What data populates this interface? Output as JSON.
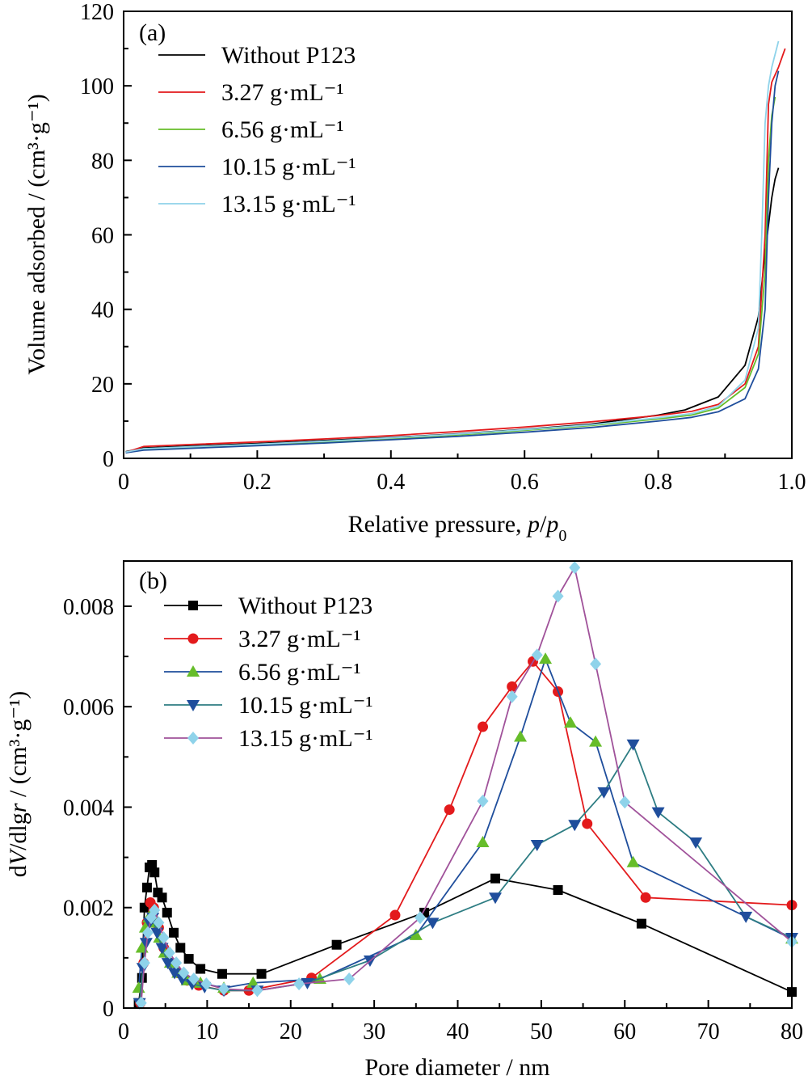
{
  "chart_data": [
    {
      "panel": "(a)",
      "type": "line",
      "xlabel_main": "Relative pressure, ",
      "xlabel_italic": "p",
      "xlabel_slash": "/",
      "xlabel_italic2": "p",
      "xlabel_sub": "0",
      "ylabel": "Volume adsorbed / (cm³·g⁻¹)",
      "xlim": [
        0,
        1.0
      ],
      "ylim": [
        0,
        120
      ],
      "xticks": [
        0,
        0.2,
        0.4,
        0.6,
        0.8,
        1.0
      ],
      "xtick_labels": [
        "0",
        "0.2",
        "0.4",
        "0.6",
        "0.8",
        "1.0"
      ],
      "yticks": [
        0,
        20,
        40,
        60,
        80,
        100,
        120
      ],
      "ytick_labels": [
        "0",
        "20",
        "40",
        "60",
        "80",
        "100",
        "120"
      ],
      "legend_position": "top-left",
      "series": [
        {
          "name": "Without P123",
          "color": "#000000",
          "x": [
            0.003,
            0.03,
            0.1,
            0.2,
            0.3,
            0.4,
            0.5,
            0.6,
            0.7,
            0.8,
            0.84,
            0.89,
            0.93,
            0.95,
            0.96,
            0.97,
            0.975,
            0.98
          ],
          "y": [
            1.8,
            2.8,
            3.3,
            4.0,
            4.8,
            5.6,
            6.6,
            7.8,
            9.2,
            11.6,
            13.0,
            16.5,
            25,
            38,
            55,
            70,
            75,
            78
          ]
        },
        {
          "name": "3.27 g·mL⁻¹",
          "color": "#e31a1c",
          "x": [
            0.003,
            0.03,
            0.1,
            0.2,
            0.3,
            0.4,
            0.5,
            0.6,
            0.7,
            0.8,
            0.85,
            0.89,
            0.93,
            0.95,
            0.96,
            0.965,
            0.97,
            0.98,
            0.99
          ],
          "y": [
            1.6,
            3.2,
            3.7,
            4.4,
            5.2,
            6.1,
            7.2,
            8.4,
            9.8,
            11.5,
            12.6,
            14.5,
            20,
            30,
            60,
            95,
            101,
            105,
            110
          ]
        },
        {
          "name": "6.56 g·mL⁻¹",
          "color": "#66bd2a",
          "x": [
            0.003,
            0.03,
            0.1,
            0.2,
            0.3,
            0.4,
            0.5,
            0.6,
            0.7,
            0.8,
            0.85,
            0.89,
            0.93,
            0.95,
            0.96,
            0.965,
            0.97,
            0.975
          ],
          "y": [
            1.6,
            2.4,
            2.9,
            3.6,
            4.4,
            5.3,
            6.3,
            7.5,
            8.8,
            10.6,
            11.6,
            13.5,
            19,
            28,
            50,
            80,
            92,
            97
          ]
        },
        {
          "name": "10.15 g·mL⁻¹",
          "color": "#1f4e9c",
          "x": [
            0.003,
            0.03,
            0.1,
            0.2,
            0.3,
            0.4,
            0.5,
            0.6,
            0.7,
            0.8,
            0.85,
            0.89,
            0.93,
            0.95,
            0.96,
            0.965,
            0.97,
            0.975,
            0.98
          ],
          "y": [
            1.5,
            2.2,
            2.7,
            3.4,
            4.1,
            5.0,
            5.9,
            7.0,
            8.3,
            10.0,
            11.0,
            12.5,
            16,
            24,
            40,
            70,
            90,
            100,
            104
          ]
        },
        {
          "name": "13.15 g·mL⁻¹",
          "color": "#8fd3ea",
          "x": [
            0.003,
            0.03,
            0.1,
            0.2,
            0.3,
            0.4,
            0.5,
            0.6,
            0.7,
            0.8,
            0.85,
            0.89,
            0.93,
            0.95,
            0.955,
            0.96,
            0.965,
            0.97,
            0.98
          ],
          "y": [
            1.7,
            2.6,
            3.1,
            3.8,
            4.6,
            5.5,
            6.5,
            7.7,
            9.0,
            10.9,
            12.0,
            14.0,
            21,
            35,
            60,
            90,
            100,
            105,
            112
          ]
        }
      ]
    },
    {
      "panel": "(b)",
      "type": "line",
      "xlabel": "Pore diameter / nm",
      "ylabel_pre": "d",
      "ylabel_italic": "V",
      "ylabel_mid": "/dlg",
      "ylabel_italic2": "r",
      "ylabel_post": " / (cm³·g⁻¹)",
      "xlim": [
        0,
        80
      ],
      "ylim": [
        0,
        0.0089
      ],
      "xticks": [
        0,
        10,
        20,
        30,
        40,
        50,
        60,
        70,
        80
      ],
      "xtick_labels": [
        "0",
        "10",
        "20",
        "30",
        "40",
        "50",
        "60",
        "70",
        "80"
      ],
      "yticks": [
        0,
        0.002,
        0.004,
        0.006,
        0.008
      ],
      "ytick_labels": [
        "0",
        "0.002",
        "0.004",
        "0.006",
        "0.008"
      ],
      "legend_position": "top-left",
      "series": [
        {
          "name": "Without P123",
          "color": "#000000",
          "line_color": "#000000",
          "marker": "square",
          "x": [
            1.8,
            2.2,
            2.5,
            2.8,
            3.1,
            3.4,
            3.7,
            4.1,
            4.6,
            5.2,
            6.0,
            6.8,
            7.8,
            9.2,
            11.8,
            16.5,
            25.5,
            36.0,
            44.5,
            52.0,
            62.0,
            80.0
          ],
          "y": [
            0.0001,
            0.0006,
            0.002,
            0.0024,
            0.0028,
            0.00285,
            0.0027,
            0.0023,
            0.0022,
            0.0019,
            0.0015,
            0.0012,
            0.00098,
            0.00078,
            0.00068,
            0.00068,
            0.00126,
            0.0019,
            0.00258,
            0.00235,
            0.00168,
            0.00032
          ]
        },
        {
          "name": "3.27 g·mL⁻¹",
          "color": "#e31a1c",
          "line_color": "#e31a1c",
          "marker": "circle",
          "x": [
            2.0,
            2.4,
            2.8,
            3.2,
            3.6,
            4.2,
            4.8,
            5.6,
            6.5,
            7.6,
            9.0,
            12.0,
            15.0,
            22.5,
            32.5,
            39.0,
            43.0,
            46.5,
            49.0,
            52.0,
            55.5,
            62.5,
            80.0
          ],
          "y": [
            0.0001,
            0.0009,
            0.0017,
            0.0021,
            0.002,
            0.0016,
            0.0012,
            0.0009,
            0.0007,
            0.00055,
            0.00045,
            0.00035,
            0.00035,
            0.0006,
            0.00185,
            0.00395,
            0.0056,
            0.0064,
            0.0069,
            0.0063,
            0.00367,
            0.0022,
            0.00205
          ]
        },
        {
          "name": "6.56 g·mL⁻¹",
          "color": "#66bd2a",
          "line_color": "#1f4e9c",
          "marker": "triangle-up",
          "x": [
            1.8,
            2.2,
            2.6,
            3.0,
            3.4,
            3.8,
            4.3,
            4.9,
            5.6,
            6.5,
            7.6,
            9.2,
            12.0,
            15.5,
            23.5,
            35.0,
            43.0,
            47.5,
            50.5,
            53.5,
            56.5,
            61.0,
            80.0
          ],
          "y": [
            0.0004,
            0.0012,
            0.0016,
            0.0018,
            0.0019,
            0.0017,
            0.0014,
            0.0011,
            0.0009,
            0.0007,
            0.00055,
            0.0005,
            0.0004,
            0.0005,
            0.00058,
            0.00145,
            0.0033,
            0.0054,
            0.00695,
            0.00568,
            0.0053,
            0.0029,
            0.00138
          ]
        },
        {
          "name": "10.15 g·mL⁻¹",
          "color": "#1f4e9c",
          "line_color": "#2e7d83",
          "marker": "triangle-down",
          "x": [
            1.9,
            2.3,
            2.7,
            3.1,
            3.5,
            4.0,
            4.6,
            5.3,
            6.1,
            7.0,
            8.2,
            9.7,
            12.0,
            16.0,
            22.0,
            29.5,
            37.0,
            44.5,
            49.5,
            54.0,
            57.5,
            61.0,
            64.0,
            68.5,
            74.5,
            80.0
          ],
          "y": [
            0.0001,
            0.0008,
            0.0013,
            0.0017,
            0.0018,
            0.0015,
            0.0012,
            0.0009,
            0.0007,
            0.00058,
            0.00048,
            0.00042,
            0.00035,
            0.00035,
            0.0005,
            0.00095,
            0.0017,
            0.0022,
            0.00325,
            0.00365,
            0.0043,
            0.00525,
            0.0039,
            0.0033,
            0.00182,
            0.0014
          ]
        },
        {
          "name": "13.15 g·mL⁻¹",
          "color": "#8fd3ea",
          "line_color": "#a0529a",
          "marker": "diamond",
          "x": [
            2.1,
            2.5,
            2.9,
            3.3,
            3.7,
            4.2,
            4.8,
            5.5,
            6.3,
            7.2,
            8.4,
            9.9,
            12.0,
            16.0,
            21.0,
            27.0,
            35.5,
            43.0,
            46.5,
            49.5,
            52.0,
            54.0,
            56.5,
            60.0,
            80.0
          ],
          "y": [
            0.0001,
            0.0009,
            0.0015,
            0.0018,
            0.00195,
            0.0017,
            0.0014,
            0.0011,
            0.0009,
            0.0007,
            0.00058,
            0.00048,
            0.00038,
            0.00035,
            0.00048,
            0.00058,
            0.0018,
            0.00412,
            0.0062,
            0.00703,
            0.0082,
            0.00877,
            0.00685,
            0.0041,
            0.00132
          ]
        }
      ]
    }
  ]
}
